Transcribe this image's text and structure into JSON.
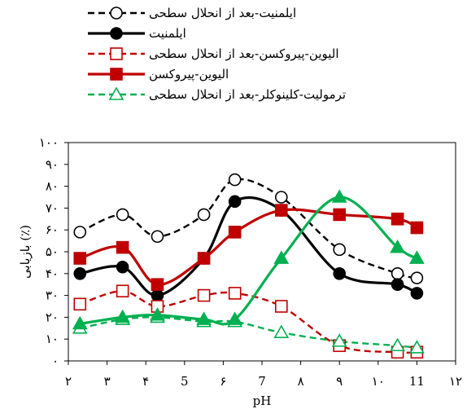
{
  "chart_data": {
    "type": "line",
    "xlabel": "pH",
    "ylabel": "بازیابی (٪)",
    "xlim": [
      2,
      12
    ],
    "ylim": [
      0,
      100
    ],
    "x_ticks": [
      2,
      3,
      4,
      5,
      6,
      7,
      8,
      9,
      10,
      11,
      12
    ],
    "x_tick_labels": [
      "٢",
      "٣",
      "۴",
      "5",
      "۶",
      "7",
      "٨",
      "٩",
      "١٠",
      "11",
      "١٢"
    ],
    "y_ticks": [
      0,
      10,
      20,
      30,
      40,
      50,
      60,
      70,
      80,
      90,
      100
    ],
    "y_tick_labels": [
      "٠",
      "١٠",
      "٢٠",
      "٣٠",
      "۴٠",
      "۵٠",
      "۶٠",
      "٧٠",
      "٨٠",
      "٩٠",
      "١٠٠"
    ],
    "grid": false,
    "legend_position": "top",
    "series": [
      {
        "name": "ایلمنیت-بعد از انحلال سطحی",
        "color": "#000000",
        "line": "dashed",
        "marker": "circle-open",
        "x": [
          2.3,
          3.4,
          4.3,
          5.5,
          6.3,
          7.5,
          9.0,
          10.5,
          11.0
        ],
        "y": [
          59,
          67,
          57,
          67,
          83,
          75,
          51,
          40,
          38
        ]
      },
      {
        "name": "ایلمنیت",
        "color": "#000000",
        "line": "solid",
        "marker": "circle-filled",
        "x": [
          2.3,
          3.4,
          4.3,
          5.5,
          6.3,
          7.5,
          9.0,
          10.5,
          11.0
        ],
        "y": [
          40,
          43,
          30,
          47,
          73,
          69,
          40,
          35,
          31
        ]
      },
      {
        "name": "الیوین-پیروکسن-بعد از انحلال سطحی",
        "color": "#c00000",
        "line": "dashed",
        "marker": "square-open",
        "x": [
          2.3,
          3.4,
          4.3,
          5.5,
          6.3,
          7.5,
          9.0,
          10.5,
          11.0
        ],
        "y": [
          26,
          32,
          25,
          30,
          31,
          25,
          7,
          4,
          4
        ]
      },
      {
        "name": "الیوین-پیروکسن",
        "color": "#c00000",
        "line": "solid",
        "marker": "square-filled",
        "x": [
          2.3,
          3.4,
          4.3,
          5.5,
          6.3,
          7.5,
          9.0,
          10.5,
          11.0
        ],
        "y": [
          47,
          52,
          35,
          47,
          59,
          69,
          67,
          65,
          61
        ]
      },
      {
        "name": "ترمولیت-کلینوکلر-بعد از انحلال سطحی",
        "color": "#00b050",
        "line": "dashed",
        "marker": "triangle-open",
        "x": [
          2.3,
          3.4,
          4.3,
          5.5,
          6.3,
          7.5,
          9.0,
          10.5,
          11.0
        ],
        "y": [
          15,
          19,
          20,
          18,
          18,
          13,
          9,
          7,
          6
        ]
      },
      {
        "name": "",
        "color": "#00b050",
        "line": "solid",
        "marker": "triangle-filled",
        "in_legend": false,
        "x": [
          2.3,
          3.4,
          4.3,
          5.5,
          6.3,
          7.5,
          9.0,
          10.5,
          11.0
        ],
        "y": [
          17,
          20,
          21,
          19,
          19,
          47,
          75,
          52,
          47
        ]
      }
    ]
  }
}
